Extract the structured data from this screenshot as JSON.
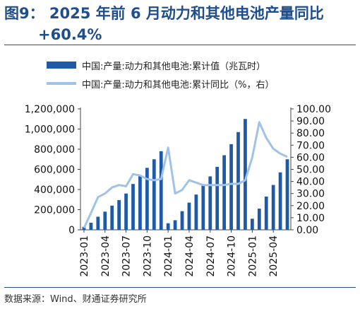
{
  "title": {
    "line1": "图9：  2025  年前  6  月动力和其他电池产量同比",
    "line2": "+60.4%"
  },
  "source": "数据来源：Wind、财通证券研究所",
  "colors": {
    "bar": "#1f5aa6",
    "line": "#9fc3e8",
    "accent": "#1f4e8c"
  },
  "chart_data": {
    "type": "bar",
    "dual_axis": true,
    "legend_position": "top-left",
    "grid": false,
    "x": [
      "2023-01",
      "2023-02",
      "2023-03",
      "2023-04",
      "2023-05",
      "2023-06",
      "2023-07",
      "2023-08",
      "2023-09",
      "2023-10",
      "2023-11",
      "2023-12",
      "2024-01",
      "2024-02",
      "2024-03",
      "2024-04",
      "2024-05",
      "2024-06",
      "2024-07",
      "2024-08",
      "2024-09",
      "2024-10",
      "2024-11",
      "2024-12",
      "2025-01",
      "2025-02",
      "2025-03",
      "2025-04",
      "2025-05",
      "2025-06"
    ],
    "x_tick_labels": [
      "2023-01",
      "2023-04",
      "2023-07",
      "2023-10",
      "2024-01",
      "2024-04",
      "2024-07",
      "2024-10",
      "2025-01",
      "2025-04"
    ],
    "series": [
      {
        "name": "中国:产量:动力和其他电池:累计值（兆瓦时）",
        "type": "bar",
        "axis": "left",
        "values": [
          30000,
          70000,
          130000,
          180000,
          240000,
          295000,
          360000,
          455000,
          535000,
          615000,
          700000,
          780000,
          65000,
          95000,
          185000,
          270000,
          350000,
          440000,
          530000,
          625000,
          740000,
          850000,
          970000,
          1100000,
          110000,
          210000,
          330000,
          445000,
          570000,
          700000
        ]
      },
      {
        "name": "中国:产量:动力和其他电池:累计同比（%，右）",
        "type": "line",
        "axis": "right",
        "values": [
          1.5,
          14,
          27,
          30,
          35,
          37,
          36,
          46,
          45,
          42,
          41,
          42,
          68,
          30,
          33,
          41,
          39,
          37,
          37,
          37,
          37,
          38,
          38,
          41,
          60,
          89,
          76,
          67,
          63,
          60.4
        ]
      }
    ],
    "y_left": {
      "min": 0,
      "max": 1200000,
      "ticks": [
        "0",
        "200,000",
        "400,000",
        "600,000",
        "800,000",
        "1,000,000",
        "1,200,000"
      ]
    },
    "y_right": {
      "min": 0,
      "max": 100,
      "ticks": [
        "0.00",
        "10.00",
        "20.00",
        "30.00",
        "40.00",
        "50.00",
        "60.00",
        "70.00",
        "80.00",
        "90.00",
        "100.00"
      ]
    }
  }
}
